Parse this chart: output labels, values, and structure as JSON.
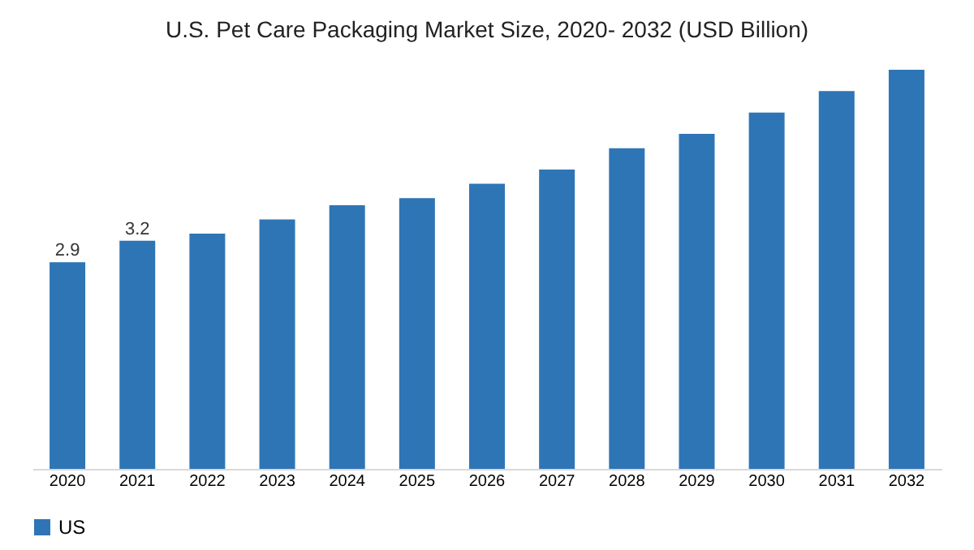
{
  "chart_data": {
    "type": "bar",
    "title": "U.S. Pet Care Packaging Market Size, 2020- 2032 (USD Billion)",
    "tick_labels": "x",
    "categories": [
      "2020",
      "2021",
      "2022",
      "2023",
      "2024",
      "2025",
      "2026",
      "2027",
      "2028",
      "2029",
      "2030",
      "2031",
      "2032"
    ],
    "series": [
      {
        "name": "US",
        "color": "#2e75b6",
        "values": [
          2.9,
          3.2,
          3.3,
          3.5,
          3.7,
          3.8,
          4.0,
          4.2,
          4.5,
          4.7,
          5.0,
          5.3,
          5.6
        ],
        "value_labels": [
          "2.9",
          "3.2",
          null,
          null,
          null,
          null,
          null,
          null,
          null,
          null,
          null,
          null,
          null
        ]
      }
    ],
    "legend": "bottom",
    "grid": false
  }
}
